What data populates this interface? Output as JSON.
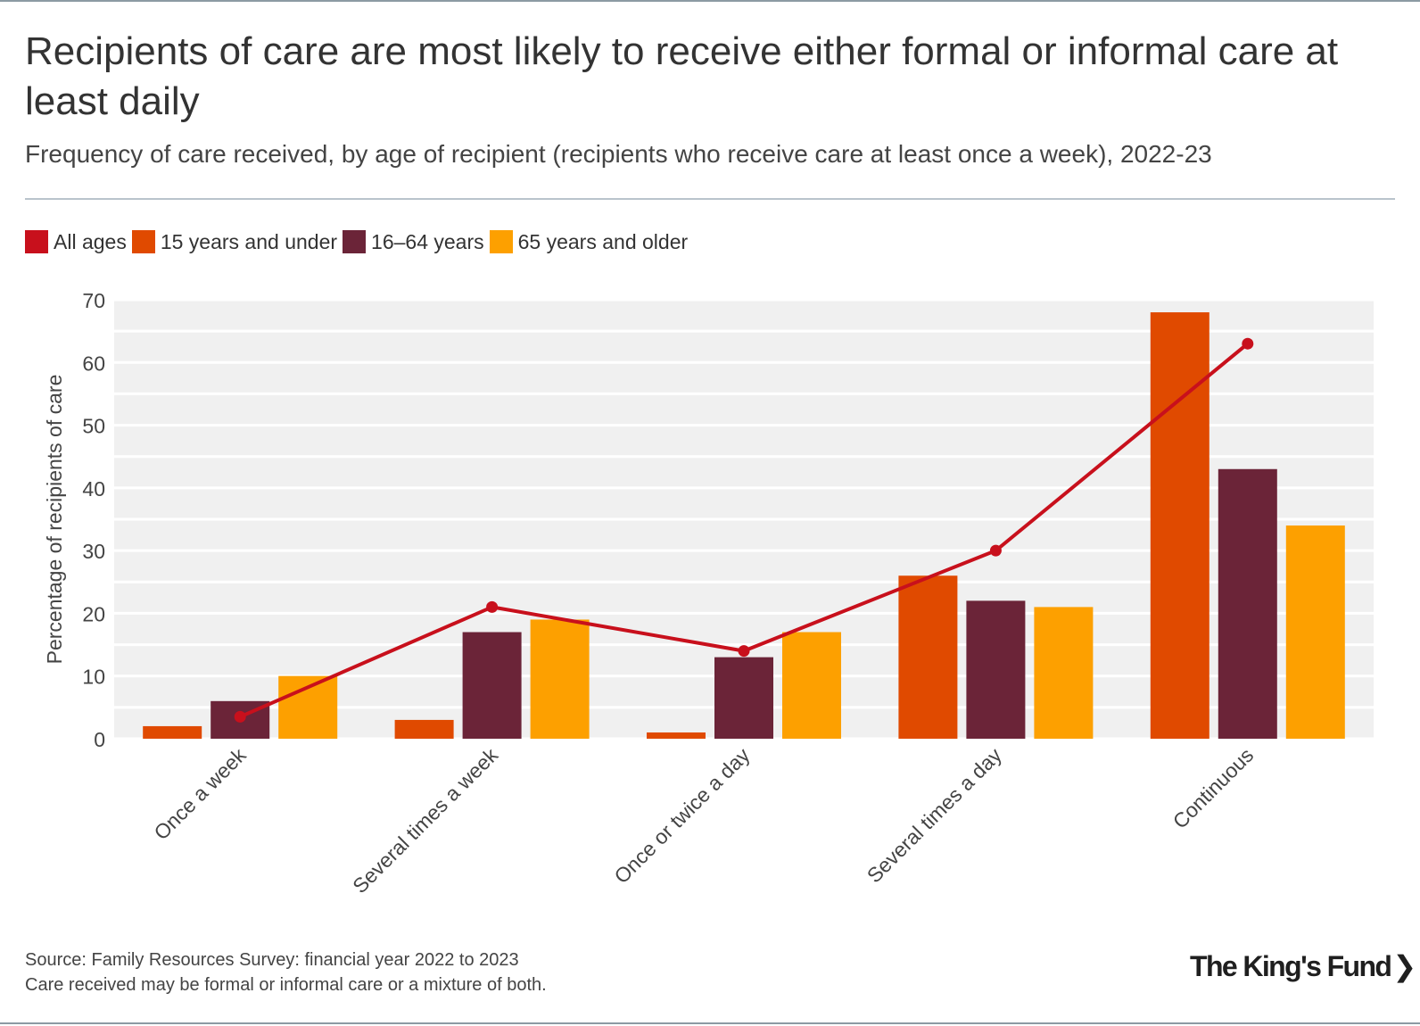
{
  "header": {
    "title": "Recipients of care are most likely to receive either formal or informal care at least daily",
    "subtitle": "Frequency of care received, by age of recipient (recipients who receive care at least once a week), 2022-23"
  },
  "legend": {
    "items": [
      {
        "label": "All ages",
        "color": "#c8101c"
      },
      {
        "label": "15 years and under",
        "color": "#e04a00"
      },
      {
        "label": "16–64 years",
        "color": "#6b2438"
      },
      {
        "label": "65 years and older",
        "color": "#fda000"
      }
    ]
  },
  "chart_data": {
    "type": "bar",
    "title": "Recipients of care are most likely to receive either formal or informal care at least daily",
    "xlabel": "",
    "ylabel": "Percentage of recipients of care",
    "ylim": [
      0,
      70
    ],
    "yticks": [
      0,
      10,
      20,
      30,
      40,
      50,
      60,
      70
    ],
    "grid": true,
    "categories": [
      "Once a week",
      "Several times a week",
      "Once or twice a day",
      "Several times a day",
      "Continuous"
    ],
    "series": [
      {
        "name": "15 years and under",
        "kind": "bar",
        "color": "#e04a00",
        "values": [
          2,
          3,
          1,
          26,
          68
        ]
      },
      {
        "name": "16–64 years",
        "kind": "bar",
        "color": "#6b2438",
        "values": [
          6,
          17,
          13,
          22,
          43
        ]
      },
      {
        "name": "65 years and older",
        "kind": "bar",
        "color": "#fda000",
        "values": [
          10,
          19,
          17,
          21,
          34
        ]
      },
      {
        "name": "All ages",
        "kind": "line",
        "color": "#c8101c",
        "values": [
          3.5,
          21,
          14,
          30,
          63
        ]
      }
    ]
  },
  "footer": {
    "source": "Source: Family Resources Survey: financial year 2022 to 2023",
    "note": "Care received may be formal or informal care or a mixture of both."
  },
  "logo": {
    "text": "The King's Fund",
    "mark": "❯"
  }
}
